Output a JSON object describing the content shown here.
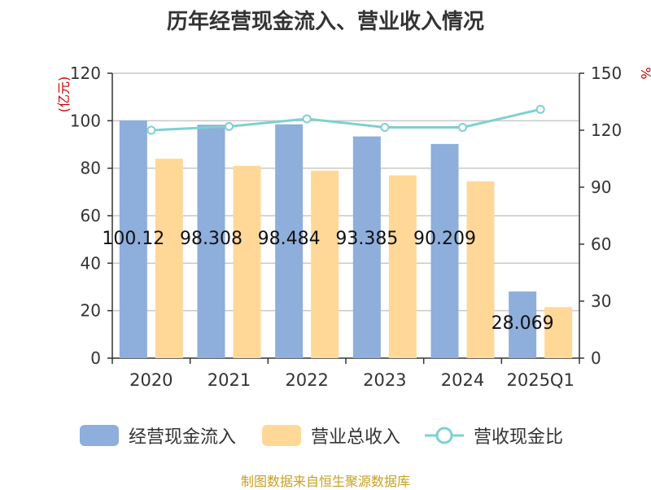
{
  "chart_data": {
    "type": "bar",
    "title": "历年经营现金流入、营业收入情况",
    "categories": [
      "2020",
      "2021",
      "2022",
      "2023",
      "2024",
      "2025Q1"
    ],
    "series": [
      {
        "name": "经营现金流入",
        "type": "bar",
        "axis": "left",
        "color": "#8eaedb",
        "values": [
          100.12,
          98.308,
          98.484,
          93.385,
          90.209,
          28.069
        ],
        "data_labels": [
          "100.12",
          "98.308",
          "98.484",
          "93.385",
          "90.209",
          "28.069"
        ]
      },
      {
        "name": "营业总收入",
        "type": "bar",
        "axis": "left",
        "color": "#ffd898",
        "values": [
          84,
          81,
          79,
          77,
          74.5,
          21.5
        ]
      },
      {
        "name": "营收现金比",
        "type": "line",
        "axis": "right",
        "color": "#7fd0d0",
        "values": [
          120,
          122,
          126,
          121.5,
          121.5,
          131
        ]
      }
    ],
    "y_left": {
      "label": "(亿元)",
      "min": 0,
      "max": 120,
      "ticks": [
        0,
        20,
        40,
        60,
        80,
        100,
        120
      ]
    },
    "y_right": {
      "label": "%",
      "min": 0,
      "max": 150,
      "ticks": [
        0,
        30,
        60,
        90,
        120,
        150
      ]
    },
    "grid": true,
    "legend_position": "bottom"
  },
  "source": "制图数据来自恒生聚源数据库"
}
